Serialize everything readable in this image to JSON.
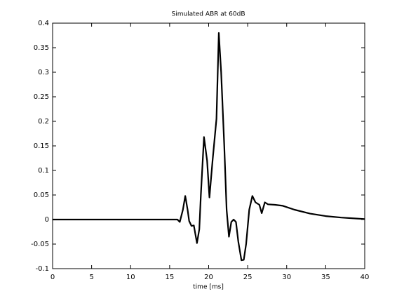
{
  "chart_data": {
    "type": "line",
    "title": "Simulated ABR at 60dB",
    "x_label": "time [ms]",
    "x": [
      0,
      5,
      10,
      15,
      16,
      16.3,
      16.7,
      17.0,
      17.3,
      17.5,
      17.8,
      18.1,
      18.5,
      18.8,
      19.0,
      19.4,
      19.8,
      20.1,
      20.5,
      21.0,
      21.3,
      21.6,
      22.0,
      22.3,
      22.6,
      22.9,
      23.2,
      23.5,
      23.8,
      24.2,
      24.5,
      24.8,
      25.2,
      25.6,
      26.0,
      26.5,
      26.8,
      27.2,
      27.6,
      28.5,
      29.5,
      31,
      33,
      35,
      37,
      39,
      40
    ],
    "series": [
      {
        "color": "#000000",
        "values": [
          0,
          0,
          0,
          0,
          0,
          -0.005,
          0.02,
          0.048,
          0.02,
          -0.003,
          -0.013,
          -0.012,
          -0.048,
          -0.02,
          0.05,
          0.168,
          0.12,
          0.045,
          0.12,
          0.205,
          0.38,
          0.3,
          0.15,
          0.02,
          -0.035,
          -0.005,
          0.0,
          -0.005,
          -0.045,
          -0.083,
          -0.082,
          -0.05,
          0.02,
          0.048,
          0.035,
          0.03,
          0.013,
          0.035,
          0.031,
          0.03,
          0.028,
          0.02,
          0.012,
          0.007,
          0.004,
          0.002,
          0.001
        ]
      }
    ],
    "xlim": [
      0,
      40
    ],
    "xticks": [
      0,
      5,
      10,
      15,
      20,
      25,
      30,
      35,
      40
    ],
    "ylim": [
      -0.1,
      0.4
    ],
    "yticks": [
      -0.1,
      -0.05,
      0,
      0.05,
      0.1,
      0.15,
      0.2,
      0.25,
      0.3,
      0.35,
      0.4
    ],
    "grid": false
  }
}
